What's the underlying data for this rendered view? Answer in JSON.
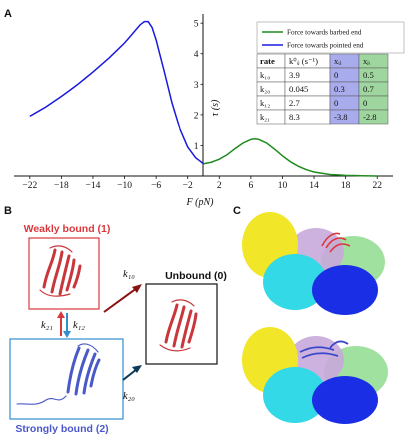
{
  "panels": {
    "a": "A",
    "b": "B",
    "c": "C"
  },
  "chart_data": {
    "type": "line",
    "xlabel": "F (pN)",
    "ylabel": "τ (s)",
    "xlim": [
      -24,
      24
    ],
    "ylim": [
      0,
      5.3
    ],
    "xticks": [
      -22,
      -18,
      -14,
      -10,
      -6,
      -2,
      2,
      6,
      10,
      14,
      18,
      22
    ],
    "yticks": [
      1,
      2,
      3,
      4,
      5
    ],
    "tick_labels_x": [
      "−22",
      "−18",
      "−14",
      "−10",
      "−6",
      "−2",
      "2",
      "6",
      "10",
      "14",
      "18",
      "22"
    ],
    "tick_labels_y": [
      "1",
      "2",
      "3",
      "4",
      "5"
    ],
    "grid": false,
    "legend_position": "top-right",
    "series": [
      {
        "name": "Force towards barbed end",
        "color": "#1f8a1f",
        "x": [
          0,
          1,
          2,
          3,
          4,
          5,
          6,
          6.5,
          7,
          8,
          9,
          10,
          11,
          12,
          13,
          14,
          16,
          18,
          20,
          22
        ],
        "y": [
          0.4,
          0.45,
          0.55,
          0.7,
          0.9,
          1.08,
          1.2,
          1.22,
          1.2,
          1.08,
          0.88,
          0.66,
          0.47,
          0.32,
          0.21,
          0.13,
          0.05,
          0.02,
          0.01,
          0.0
        ]
      },
      {
        "name": "Force towards pointed end",
        "color": "#1a1adf",
        "x": [
          -22,
          -20,
          -18,
          -16,
          -14,
          -12,
          -10,
          -9,
          -8,
          -7.5,
          -7,
          -6.5,
          -6,
          -5,
          -4,
          -3,
          -2,
          -1,
          0
        ],
        "y": [
          1.95,
          2.25,
          2.6,
          2.98,
          3.4,
          3.85,
          4.35,
          4.65,
          4.95,
          5.05,
          5.05,
          4.85,
          4.45,
          3.45,
          2.4,
          1.55,
          0.95,
          0.6,
          0.4
        ]
      }
    ]
  },
  "table": {
    "headers": [
      "rate",
      "k⁰ᵢⱼ (s⁻¹)",
      "xᵢⱼ",
      "xⱼᵢ"
    ],
    "rows": [
      [
        "k₁₀",
        "3.9",
        "0",
        "0.5"
      ],
      [
        "k₂₀",
        "0.045",
        "0.3",
        "0.7"
      ],
      [
        "k₁₂",
        "2.7",
        "0",
        "0"
      ],
      [
        "k₂₁",
        "8.3",
        "-3.8",
        "-2.8"
      ]
    ],
    "col_colors": [
      "#ffffff",
      "#ffffff",
      "#a9acec",
      "#9fd69f"
    ]
  },
  "scheme": {
    "weak": "Weakly bound (1)",
    "strong": "Strongly bound (2)",
    "unbound": "Unbound (0)",
    "k10": "k₁₀",
    "k20": "k₂₀",
    "k21": "k₂₁",
    "k12": "k₁₂",
    "colors": {
      "weak": "#d9393d",
      "strong": "#4a58c9",
      "unbound": "#111111"
    }
  },
  "structure_colors": [
    "#f2e629",
    "#33d9e6",
    "#1a2ee6",
    "#c8a8dc",
    "#8fdc8f",
    "#d9393d"
  ]
}
